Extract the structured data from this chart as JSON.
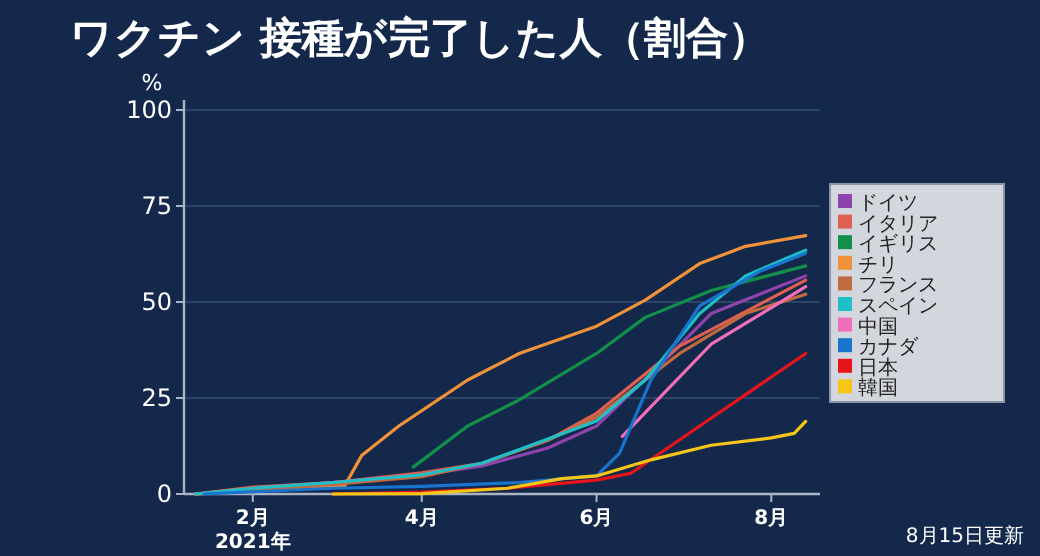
{
  "chart_data": {
    "type": "line",
    "title": "ワクチン 接種が完了した人（割合）",
    "ylabel": "%",
    "annotations": [
      "8月15日更新"
    ],
    "xlim": [
      "2021-01-08",
      "2021-08-18"
    ],
    "xticks": [
      {
        "value": "2021-02-01",
        "label": "2月\n2021年"
      },
      {
        "value": "2021-04-01",
        "label": "4月"
      },
      {
        "value": "2021-06-01",
        "label": "6月"
      },
      {
        "value": "2021-08-01",
        "label": "8月"
      }
    ],
    "ylim": [
      0,
      100
    ],
    "yticks": [
      0,
      25,
      50,
      75,
      100
    ],
    "grid": "y",
    "legend": "right",
    "series": [
      {
        "name": "ドイツ",
        "color": "#8e44ad",
        "x": [
          "2021-01-12",
          "2021-02-01",
          "2021-03-01",
          "2021-04-01",
          "2021-04-22",
          "2021-05-15",
          "2021-06-01",
          "2021-06-25",
          "2021-07-11",
          "2021-08-13"
        ],
        "values": [
          0,
          1.5,
          3,
          5,
          7.3,
          12,
          17.7,
          35,
          47,
          56.8
        ]
      },
      {
        "name": "イタリア",
        "color": "#e0604f",
        "x": [
          "2021-01-12",
          "2021-02-01",
          "2021-03-01",
          "2021-04-01",
          "2021-04-22",
          "2021-05-15",
          "2021-06-01",
          "2021-06-30",
          "2021-08-13"
        ],
        "values": [
          0,
          1.8,
          3,
          5.5,
          8,
          14,
          21,
          38.5,
          55.7
        ]
      },
      {
        "name": "イギリス",
        "color": "#12904a",
        "x": [
          "2021-03-29",
          "2021-04-17",
          "2021-05-05",
          "2021-06-01",
          "2021-06-18",
          "2021-07-11",
          "2021-08-13"
        ],
        "values": [
          7,
          17.7,
          24.5,
          36.6,
          46,
          53,
          59.4
        ]
      },
      {
        "name": "チリ",
        "color": "#f0923a",
        "x": [
          "2021-01-12",
          "2021-03-05",
          "2021-03-11",
          "2021-03-24",
          "2021-04-17",
          "2021-05-05",
          "2021-06-01",
          "2021-06-18",
          "2021-07-07",
          "2021-07-23",
          "2021-08-13"
        ],
        "values": [
          0,
          2,
          10,
          17.7,
          29.7,
          36.6,
          43.7,
          50.5,
          60,
          64.5,
          67.3
        ]
      },
      {
        "name": "フランス",
        "color": "#c06a3f",
        "x": [
          "2021-01-12",
          "2021-02-01",
          "2021-03-01",
          "2021-04-01",
          "2021-04-22",
          "2021-05-15",
          "2021-06-01",
          "2021-06-30",
          "2021-07-23",
          "2021-08-13"
        ],
        "values": [
          0,
          1,
          2.5,
          4.5,
          8,
          14,
          20,
          36.6,
          47,
          52
        ]
      },
      {
        "name": "スペイン",
        "color": "#1fbfc9",
        "x": [
          "2021-01-12",
          "2021-02-01",
          "2021-03-01",
          "2021-04-01",
          "2021-04-22",
          "2021-06-01",
          "2021-06-18",
          "2021-07-07",
          "2021-07-23",
          "2021-08-13"
        ],
        "values": [
          0,
          1.5,
          3,
          5,
          8,
          19,
          29.7,
          47,
          56.8,
          63.5
        ]
      },
      {
        "name": "中国",
        "color": "#f06fb8",
        "x": [
          "2021-06-10",
          "2021-07-11",
          "2021-08-13"
        ],
        "values": [
          15,
          39,
          54
        ]
      },
      {
        "name": "カナダ",
        "color": "#1874cd",
        "x": [
          "2021-01-15",
          "2021-03-01",
          "2021-04-01",
          "2021-05-05",
          "2021-06-01",
          "2021-06-09",
          "2021-06-20",
          "2021-07-07",
          "2021-07-28",
          "2021-08-13"
        ],
        "values": [
          0,
          1.5,
          2,
          3,
          4.7,
          10.6,
          29.7,
          49,
          58,
          62.7
        ]
      },
      {
        "name": "日本",
        "color": "#e8141c",
        "x": [
          "2021-03-01",
          "2021-04-01",
          "2021-05-01",
          "2021-06-01",
          "2021-06-13",
          "2021-07-07",
          "2021-08-13"
        ],
        "values": [
          0,
          0.5,
          1.5,
          3.6,
          5.4,
          17.7,
          36.6
        ]
      },
      {
        "name": "韓国",
        "color": "#f5c518",
        "x": [
          "2021-03-01",
          "2021-04-01",
          "2021-05-01",
          "2021-05-20",
          "2021-06-01",
          "2021-06-20",
          "2021-07-11",
          "2021-08-01",
          "2021-08-09",
          "2021-08-13"
        ],
        "values": [
          0,
          0.1,
          1.5,
          4,
          4.7,
          8.9,
          12.7,
          14.6,
          15.8,
          18.9
        ]
      }
    ]
  }
}
